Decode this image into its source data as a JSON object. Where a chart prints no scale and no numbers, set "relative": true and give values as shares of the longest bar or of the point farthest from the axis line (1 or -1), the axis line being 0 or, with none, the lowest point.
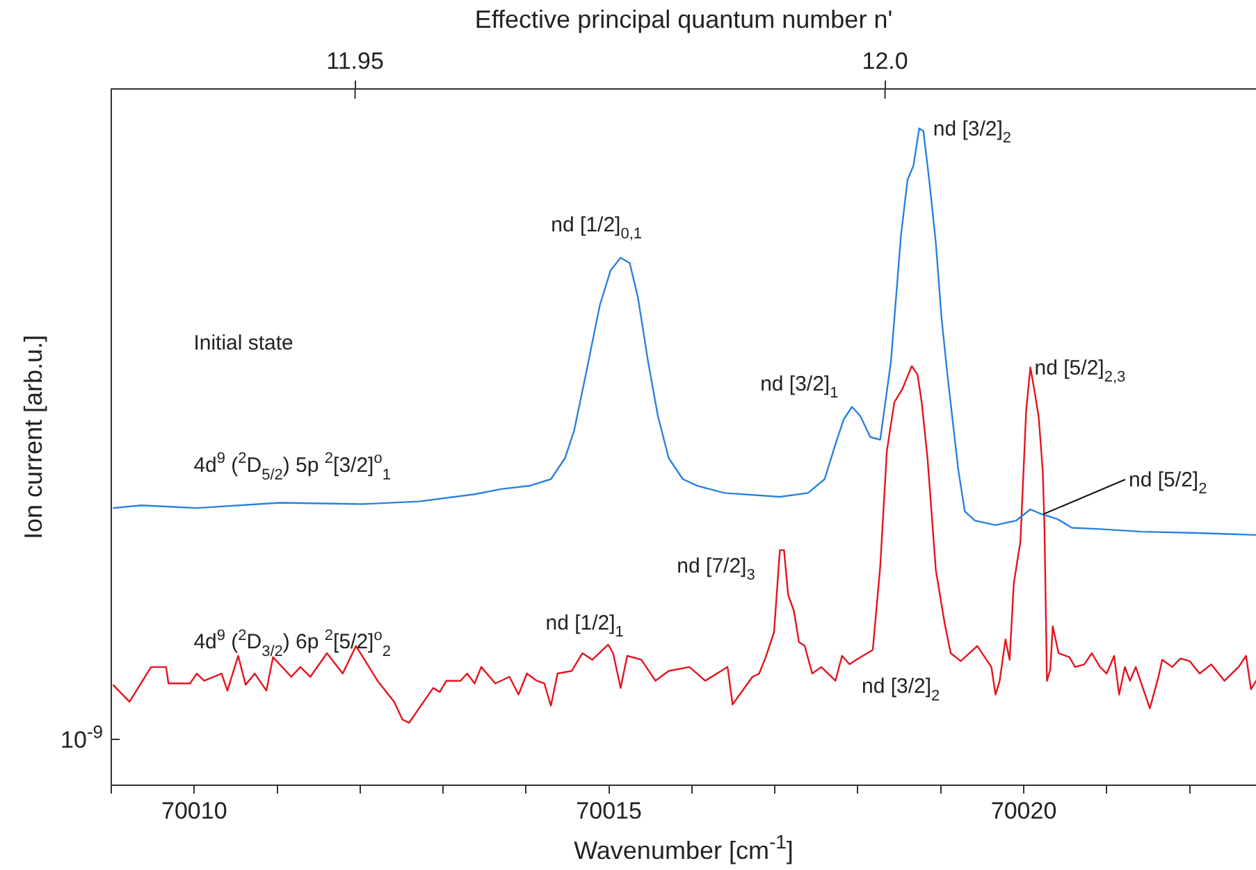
{
  "chart_data": {
    "type": "line",
    "relative": true,
    "xlabel": "Wavenumber [cm$^{-1}$]",
    "ylabel": "Ion current [arb.u.]",
    "x2label": "Effective principal quantum number n'",
    "legend_title": "Initial state",
    "xlim": [
      70009,
      70022.8
    ],
    "xticks": [
      {
        "value": 70009,
        "label": null
      },
      70010,
      {
        "value": 70011,
        "label": null
      },
      {
        "value": 70012,
        "label": null
      },
      {
        "value": 70013,
        "label": null
      },
      {
        "value": 70014,
        "label": null
      },
      70015,
      {
        "value": 70016,
        "label": null
      },
      {
        "value": 70017,
        "label": null
      },
      {
        "value": 70018,
        "label": null
      },
      {
        "value": 70019,
        "label": null
      },
      70020,
      {
        "value": 70021,
        "label": null
      },
      {
        "value": 70022,
        "label": null
      }
    ],
    "x2lim": [
      11.927,
      12.035
    ],
    "x2ticks": [
      11.95,
      {
        "value": 12,
        "label": "12.0"
      }
    ],
    "series": [
      {
        "name": "4d$^{9}$ ($^{2}$D$_{5/2}$) 5p $^{2}$[3/2]$^{o}$$_{1}$",
        "color": "#2a80e0",
        "x": [
          70009.02,
          70009.36,
          70010.03,
          70011.03,
          70012.04,
          70012.71,
          70013.38,
          70013.71,
          70014.05,
          70014.3,
          70014.47,
          70014.58,
          70014.72,
          70014.89,
          70015.02,
          70015.14,
          70015.25,
          70015.35,
          70015.47,
          70015.59,
          70015.72,
          70015.89,
          70016.06,
          70016.39,
          70017.06,
          70017.4,
          70017.6,
          70017.73,
          70017.83,
          70017.93,
          70018.03,
          70018.15,
          70018.27,
          70018.4,
          70018.52,
          70018.6,
          70018.67,
          70018.74,
          70018.79,
          70018.86,
          70018.94,
          70019.01,
          70019.08,
          70019.21,
          70019.29,
          70019.41,
          70019.66,
          70019.91,
          70020.08,
          70020.21,
          70020.41,
          70020.58,
          70020.92,
          70021.42,
          70022.09,
          70022.8
        ],
        "values": [
          0.422,
          0.426,
          0.422,
          0.43,
          0.428,
          0.432,
          0.443,
          0.451,
          0.456,
          0.466,
          0.498,
          0.54,
          0.625,
          0.731,
          0.784,
          0.803,
          0.795,
          0.742,
          0.646,
          0.562,
          0.498,
          0.466,
          0.456,
          0.445,
          0.439,
          0.445,
          0.466,
          0.519,
          0.557,
          0.576,
          0.562,
          0.53,
          0.526,
          0.646,
          0.837,
          0.922,
          0.943,
          1,
          0.996,
          0.922,
          0.826,
          0.71,
          0.625,
          0.481,
          0.417,
          0.403,
          0.396,
          0.403,
          0.42,
          0.413,
          0.405,
          0.392,
          0.39,
          0.386,
          0.384,
          0.381
        ]
      },
      {
        "name": "4d$^{9}$ ($^{2}$D$_{3/2}$) 6p $^{2}$[5/2]$^{o}$$_{2}$",
        "color": "#e5131d",
        "x": [
          70009.02,
          70009.22,
          70009.48,
          70009.66,
          70009.69,
          70009.95,
          70010.03,
          70010.12,
          70010.33,
          70010.4,
          70010.53,
          70010.62,
          70010.73,
          70010.87,
          70010.95,
          70011.17,
          70011.28,
          70011.4,
          70011.6,
          70011.79,
          70011.95,
          70012.21,
          70012.41,
          70012.51,
          70012.59,
          70012.71,
          70012.88,
          70012.96,
          70013.04,
          70013.21,
          70013.29,
          70013.38,
          70013.46,
          70013.63,
          70013.8,
          70013.91,
          70014.01,
          70014.13,
          70014.22,
          70014.3,
          70014.38,
          70014.55,
          70014.68,
          70014.8,
          70014.99,
          70015.05,
          70015.14,
          70015.22,
          70015.39,
          70015.56,
          70015.72,
          70015.97,
          70016.16,
          70016.43,
          70016.49,
          70016.73,
          70016.81,
          70016.89,
          70016.99,
          70017.06,
          70017.11,
          70017.16,
          70017.23,
          70017.29,
          70017.36,
          70017.45,
          70017.56,
          70017.73,
          70017.81,
          70017.9,
          70017.98,
          70018.18,
          70018.27,
          70018.35,
          70018.44,
          70018.54,
          70018.65,
          70018.72,
          70018.77,
          70018.84,
          70018.94,
          70019.05,
          70019.12,
          70019.24,
          70019.44,
          70019.61,
          70019.66,
          70019.71,
          70019.78,
          70019.83,
          70019.88,
          70019.96,
          70020.03,
          70020.08,
          70020.13,
          70020.18,
          70020.23,
          70020.25,
          70020.28,
          70020.32,
          70020.35,
          70020.42,
          70020.55,
          70020.62,
          70020.73,
          70020.82,
          70020.92,
          70021,
          70021.09,
          70021.15,
          70021.22,
          70021.28,
          70021.35,
          70021.52,
          70021.62,
          70021.67,
          70021.79,
          70021.89,
          70022,
          70022.12,
          70022.26,
          70022.42,
          70022.59,
          70022.68,
          70022.74,
          70022.8
        ],
        "values": [
          0.153,
          0.127,
          0.18,
          0.18,
          0.155,
          0.155,
          0.17,
          0.159,
          0.17,
          0.144,
          0.197,
          0.153,
          0.17,
          0.144,
          0.195,
          0.165,
          0.18,
          0.165,
          0.201,
          0.17,
          0.212,
          0.159,
          0.127,
          0.1,
          0.095,
          0.117,
          0.148,
          0.142,
          0.159,
          0.159,
          0.17,
          0.155,
          0.18,
          0.155,
          0.165,
          0.138,
          0.17,
          0.159,
          0.155,
          0.121,
          0.17,
          0.174,
          0.201,
          0.191,
          0.214,
          0.201,
          0.148,
          0.197,
          0.191,
          0.159,
          0.174,
          0.18,
          0.159,
          0.18,
          0.123,
          0.165,
          0.17,
          0.195,
          0.233,
          0.358,
          0.358,
          0.29,
          0.265,
          0.218,
          0.212,
          0.17,
          0.18,
          0.159,
          0.197,
          0.184,
          0.191,
          0.206,
          0.333,
          0.509,
          0.583,
          0.604,
          0.638,
          0.625,
          0.583,
          0.498,
          0.328,
          0.244,
          0.201,
          0.189,
          0.212,
          0.18,
          0.138,
          0.159,
          0.222,
          0.191,
          0.307,
          0.371,
          0.572,
          0.636,
          0.6,
          0.561,
          0.477,
          0.392,
          0.159,
          0.176,
          0.242,
          0.201,
          0.195,
          0.18,
          0.184,
          0.201,
          0.18,
          0.17,
          0.197,
          0.138,
          0.18,
          0.159,
          0.18,
          0.117,
          0.163,
          0.191,
          0.18,
          0.193,
          0.189,
          0.17,
          0.184,
          0.159,
          0.18,
          0.197,
          0.146,
          0.159
        ]
      }
    ],
    "annotations": [
      {
        "text": "nd [1/2]$_{0,1}$",
        "x": 70015.14,
        "y": 0.803
      },
      {
        "text": "nd [3/2]$_{2}$",
        "x": 70018.74,
        "y": 1
      },
      {
        "text": "nd [3/2]$_{1}$",
        "x": 70017.93,
        "y": 0.576
      },
      {
        "text": "nd [5/2]$_{2,3}$",
        "x": 70020.08,
        "y": 0.636
      },
      {
        "text": "nd [5/2]$_{2}$",
        "x": 70020.21,
        "y": 0.413
      },
      {
        "text": "nd [7/2]$_{3}$",
        "x": 70017.06,
        "y": 0.358
      },
      {
        "text": "nd [1/2]$_{1}$",
        "x": 70014.99,
        "y": 0.214
      },
      {
        "text": "nd [3/2]$_{2}$",
        "x": 70018.18,
        "y": 0.206
      },
      "10$^{-9}$"
    ]
  }
}
